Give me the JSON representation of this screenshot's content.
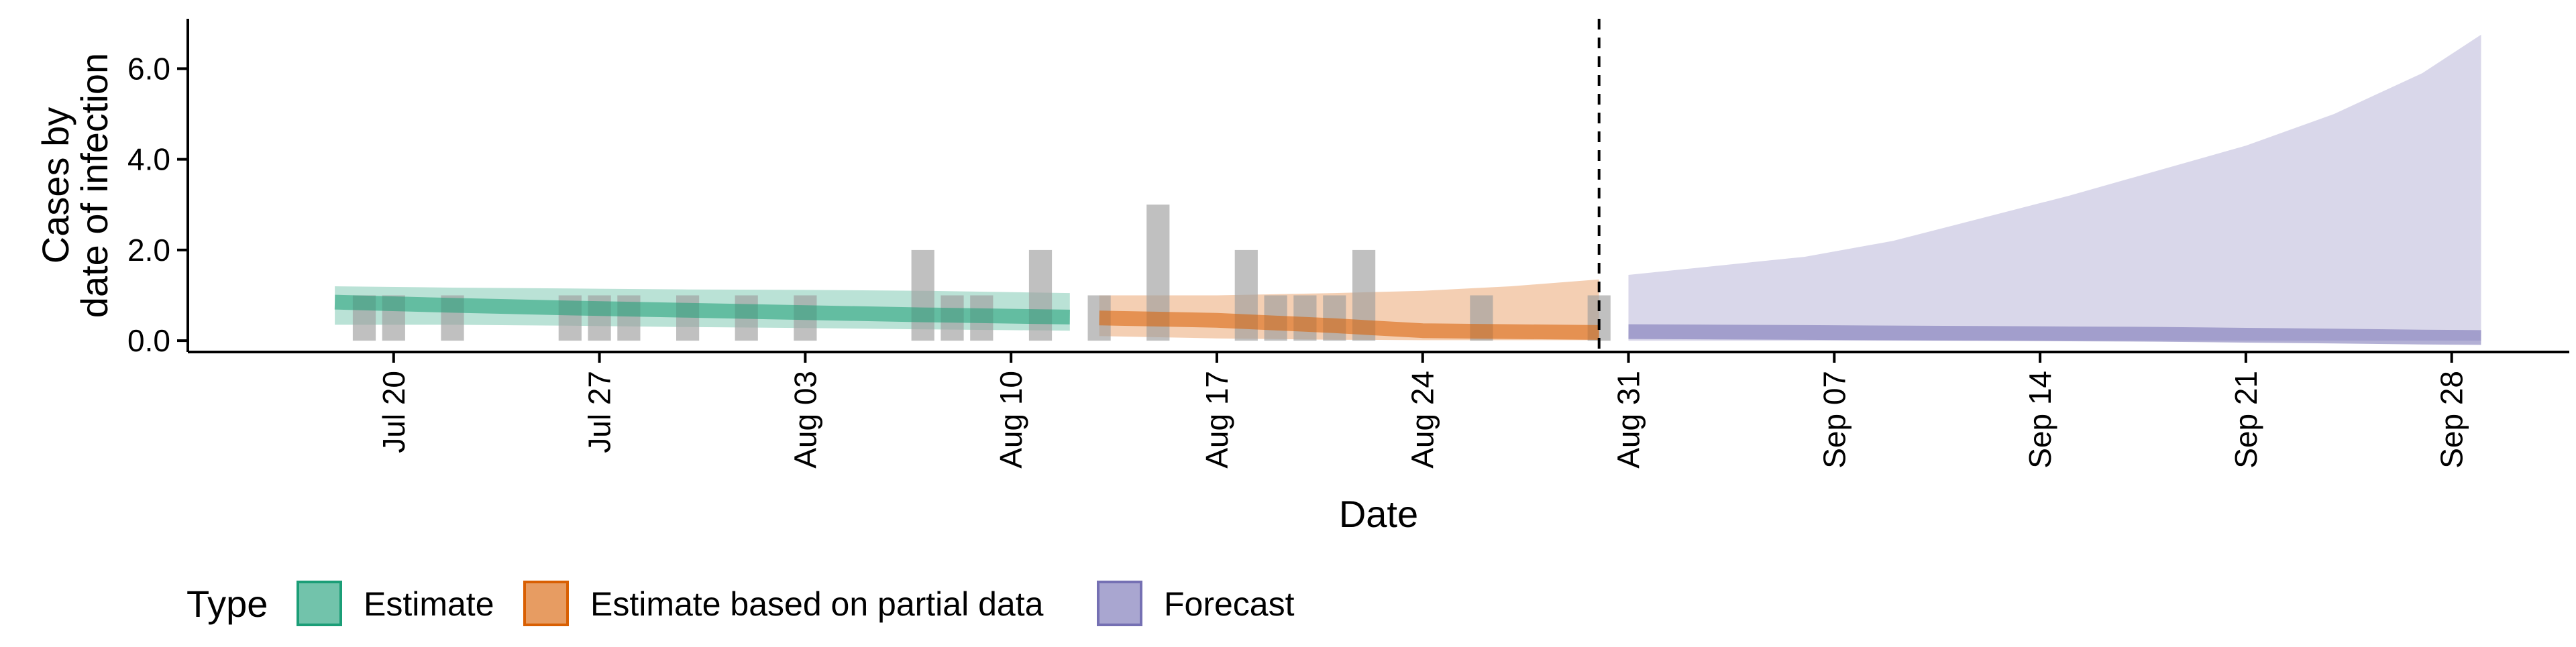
{
  "chart_data": {
    "type": "area",
    "xlabel": "Date",
    "ylabel_lines": [
      "Cases by",
      "date of infection"
    ],
    "ylim": [
      -0.25,
      7.1
    ],
    "y_ticks": [
      0,
      2,
      4,
      6
    ],
    "y_tick_labels": [
      "0.0",
      "2.0",
      "4.0",
      "6.0"
    ],
    "x_range": [
      "2020-07-13",
      "2020-10-02"
    ],
    "x_ticks": [
      "2020-07-20",
      "2020-07-27",
      "2020-08-03",
      "2020-08-10",
      "2020-08-17",
      "2020-08-24",
      "2020-08-31",
      "2020-09-07",
      "2020-09-14",
      "2020-09-21",
      "2020-09-28"
    ],
    "x_tick_labels": [
      "Jul 20",
      "Jul 27",
      "Aug 03",
      "Aug 10",
      "Aug 17",
      "Aug 24",
      "Aug 31",
      "Sep 07",
      "Sep 14",
      "Sep 21",
      "Sep 28"
    ],
    "forecast_start_line": "2020-08-30",
    "grid": false,
    "legend_position": "bottom",
    "legend_title": "Type",
    "legend": [
      {
        "label": "Estimate",
        "color": "#1B9E77"
      },
      {
        "label": "Estimate based on partial data",
        "color": "#D95F02"
      },
      {
        "label": "Forecast",
        "color": "#7570B3"
      }
    ],
    "observed_cases": {
      "color": "#9E9E9E",
      "dates": [
        "2020-07-19",
        "2020-07-20",
        "2020-07-22",
        "2020-07-26",
        "2020-07-27",
        "2020-07-28",
        "2020-07-30",
        "2020-08-01",
        "2020-08-03",
        "2020-08-07",
        "2020-08-08",
        "2020-08-09",
        "2020-08-11",
        "2020-08-13",
        "2020-08-15",
        "2020-08-18",
        "2020-08-19",
        "2020-08-20",
        "2020-08-21",
        "2020-08-22",
        "2020-08-26",
        "2020-08-30"
      ],
      "values": [
        1,
        1,
        1,
        1,
        1,
        1,
        1,
        1,
        1,
        2,
        1,
        1,
        2,
        1,
        3,
        2,
        1,
        1,
        1,
        2,
        1,
        1
      ]
    },
    "series": [
      {
        "name": "Estimate",
        "color": "#1B9E77",
        "dates": [
          "2020-07-18",
          "2020-07-22",
          "2020-07-26",
          "2020-07-30",
          "2020-08-03",
          "2020-08-07",
          "2020-08-12"
        ],
        "median": [
          0.85,
          0.78,
          0.72,
          0.67,
          0.62,
          0.57,
          0.52
        ],
        "lower": [
          0.35,
          0.35,
          0.33,
          0.3,
          0.28,
          0.25,
          0.22
        ],
        "upper": [
          1.2,
          1.17,
          1.15,
          1.13,
          1.12,
          1.1,
          1.05
        ]
      },
      {
        "name": "Estimate based on partial data",
        "color": "#D95F02",
        "dates": [
          "2020-08-13",
          "2020-08-17",
          "2020-08-21",
          "2020-08-24",
          "2020-08-27",
          "2020-08-30"
        ],
        "median": [
          0.5,
          0.45,
          0.33,
          0.22,
          0.2,
          0.18
        ],
        "lower": [
          0.1,
          0.05,
          0.02,
          0.01,
          0.01,
          0.01
        ],
        "upper": [
          1.0,
          1.0,
          1.05,
          1.1,
          1.2,
          1.35
        ]
      },
      {
        "name": "Forecast",
        "color": "#7570B3",
        "dates": [
          "2020-08-31",
          "2020-09-03",
          "2020-09-06",
          "2020-09-09",
          "2020-09-12",
          "2020-09-15",
          "2020-09-18",
          "2020-09-21",
          "2020-09-24",
          "2020-09-27",
          "2020-09-29"
        ],
        "median": [
          0.2,
          0.19,
          0.18,
          0.17,
          0.16,
          0.15,
          0.14,
          0.12,
          0.1,
          0.08,
          0.07
        ],
        "lower": [
          0,
          0,
          0,
          0,
          0,
          0,
          0,
          0,
          0,
          0,
          0
        ],
        "upper": [
          1.45,
          1.65,
          1.85,
          2.2,
          2.7,
          3.2,
          3.75,
          4.3,
          5.0,
          5.9,
          6.75
        ]
      }
    ]
  }
}
